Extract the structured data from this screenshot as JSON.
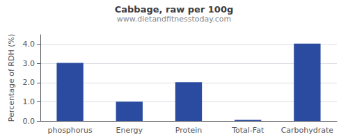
{
  "chart_data": {
    "type": "bar",
    "title": "Cabbage, raw per 100g",
    "subtitle": "www.dietandfitnesstoday.com",
    "categories": [
      "phosphorus",
      "Energy",
      "Protein",
      "Total-Fat",
      "Carbohydrate"
    ],
    "values": [
      3.03,
      1.01,
      2.02,
      0.05,
      4.04
    ],
    "color": "#2b4ba0",
    "ylabel": "Percentage of RDH (%)",
    "ylim": [
      0,
      4.5
    ],
    "yticks": [
      {
        "value": 0.0,
        "label": "0.0"
      },
      {
        "value": 1.0,
        "label": "1.0"
      },
      {
        "value": 2.0,
        "label": "2.0"
      },
      {
        "value": 3.0,
        "label": "3.0"
      },
      {
        "value": 4.0,
        "label": "4.0"
      }
    ],
    "grid": true
  }
}
